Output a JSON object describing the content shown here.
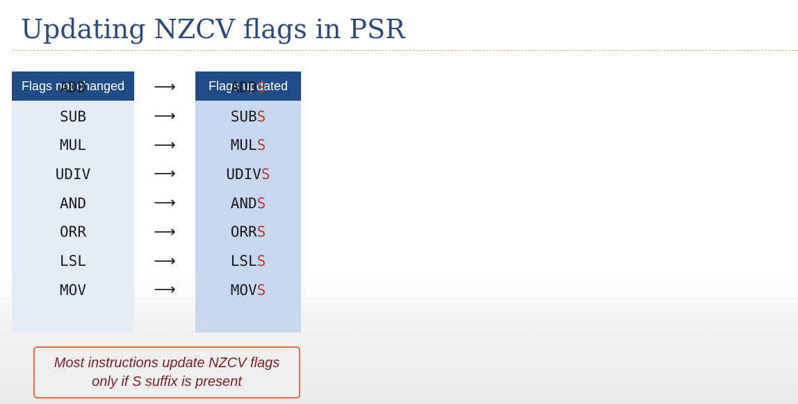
{
  "slide": {
    "title": "Updating NZCV flags in PSR"
  },
  "table": {
    "header_left": "Flags not changed",
    "header_right": "Flags updated",
    "arrow": "⟶",
    "rows": [
      {
        "base": "ADD",
        "updated_base": "ADD",
        "suffix": "S"
      },
      {
        "base": "SUB",
        "updated_base": "SUB",
        "suffix": "S"
      },
      {
        "base": "MUL",
        "updated_base": "MUL",
        "suffix": "S"
      },
      {
        "base": "UDIV",
        "updated_base": "UDIV",
        "suffix": "S"
      },
      {
        "base": "AND",
        "updated_base": "AND",
        "suffix": "S"
      },
      {
        "base": "ORR",
        "updated_base": "ORR",
        "suffix": "S"
      },
      {
        "base": "LSL",
        "updated_base": "LSL",
        "suffix": "S"
      },
      {
        "base": "MOV",
        "updated_base": "MOV",
        "suffix": "S"
      }
    ]
  },
  "note": {
    "line1": "Most instructions update NZCV flags",
    "line2": "only if S suffix is present"
  },
  "colors": {
    "title": "#2c4a7a",
    "header_bg": "#1f4b86",
    "suffix": "#c0392b",
    "note_border": "#e46a4a",
    "note_text": "#7a1f1f"
  }
}
